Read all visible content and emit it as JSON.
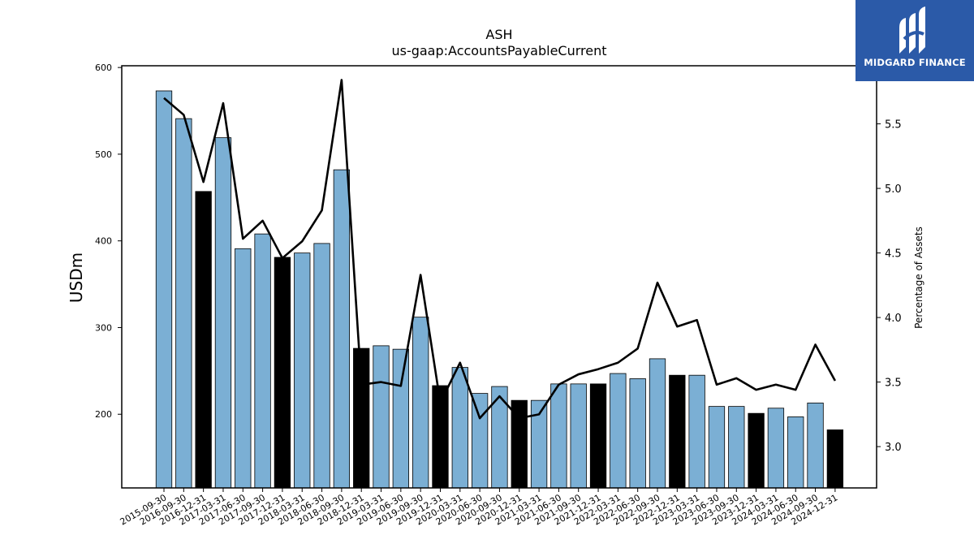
{
  "chart_data": {
    "type": "bar",
    "title": "ASH",
    "subtitle": "us-gaap:AccountsPayableCurrent",
    "ylabel": "USDm",
    "y2label": "Percentage of Assets",
    "ylim": [
      115,
      602
    ],
    "y2lim": [
      2.68,
      5.95
    ],
    "yticks": [
      200,
      300,
      400,
      500,
      600
    ],
    "y2ticks": [
      "3.0",
      "3.5",
      "4.0",
      "4.5",
      "5.0",
      "5.5"
    ],
    "categories": [
      "2015-09-30",
      "2016-09-30",
      "2016-12-31",
      "2017-03-31",
      "2017-06-30",
      "2017-09-30",
      "2017-12-31",
      "2018-03-31",
      "2018-06-30",
      "2018-09-30",
      "2018-12-31",
      "2019-03-31",
      "2019-06-30",
      "2019-09-30",
      "2019-12-31",
      "2020-03-31",
      "2020-06-30",
      "2020-09-30",
      "2020-12-31",
      "2021-03-31",
      "2021-06-30",
      "2021-09-30",
      "2021-12-31",
      "2022-03-31",
      "2022-06-30",
      "2022-09-30",
      "2022-12-31",
      "2023-03-31",
      "2023-06-30",
      "2023-09-30",
      "2023-12-31",
      "2024-03-31",
      "2024-06-30",
      "2024-09-30",
      "2024-12-31"
    ],
    "series": [
      {
        "type": "bar",
        "axis": "left",
        "values": [
          573,
          541,
          457,
          519,
          391,
          408,
          381,
          386,
          397,
          482,
          276,
          279,
          275,
          312,
          233,
          254,
          224,
          232,
          216,
          216,
          235,
          235,
          235,
          247,
          241,
          264,
          245,
          245,
          209,
          209,
          201,
          207,
          197,
          213,
          182
        ],
        "highlight": [
          false,
          false,
          true,
          false,
          false,
          false,
          true,
          false,
          false,
          false,
          true,
          false,
          false,
          false,
          true,
          false,
          false,
          false,
          true,
          false,
          false,
          false,
          true,
          false,
          false,
          false,
          true,
          false,
          false,
          false,
          true,
          false,
          false,
          false,
          true
        ]
      },
      {
        "type": "line",
        "axis": "right",
        "values": [
          5.7,
          5.57,
          5.05,
          5.66,
          4.61,
          4.75,
          4.46,
          4.59,
          4.83,
          5.84,
          3.48,
          3.5,
          3.47,
          4.33,
          3.34,
          3.65,
          3.22,
          3.39,
          3.22,
          3.25,
          3.48,
          3.56,
          3.6,
          3.65,
          3.76,
          4.27,
          3.93,
          3.98,
          3.48,
          3.53,
          3.44,
          3.48,
          3.44,
          3.79,
          3.51
        ]
      }
    ],
    "colors": {
      "bar": "#7bafd4",
      "bar_highlight": "#000000",
      "line": "#000000"
    },
    "grid": false
  },
  "logo": {
    "text": "MIDGARD FINANCE",
    "background": "#2b5aa8"
  }
}
